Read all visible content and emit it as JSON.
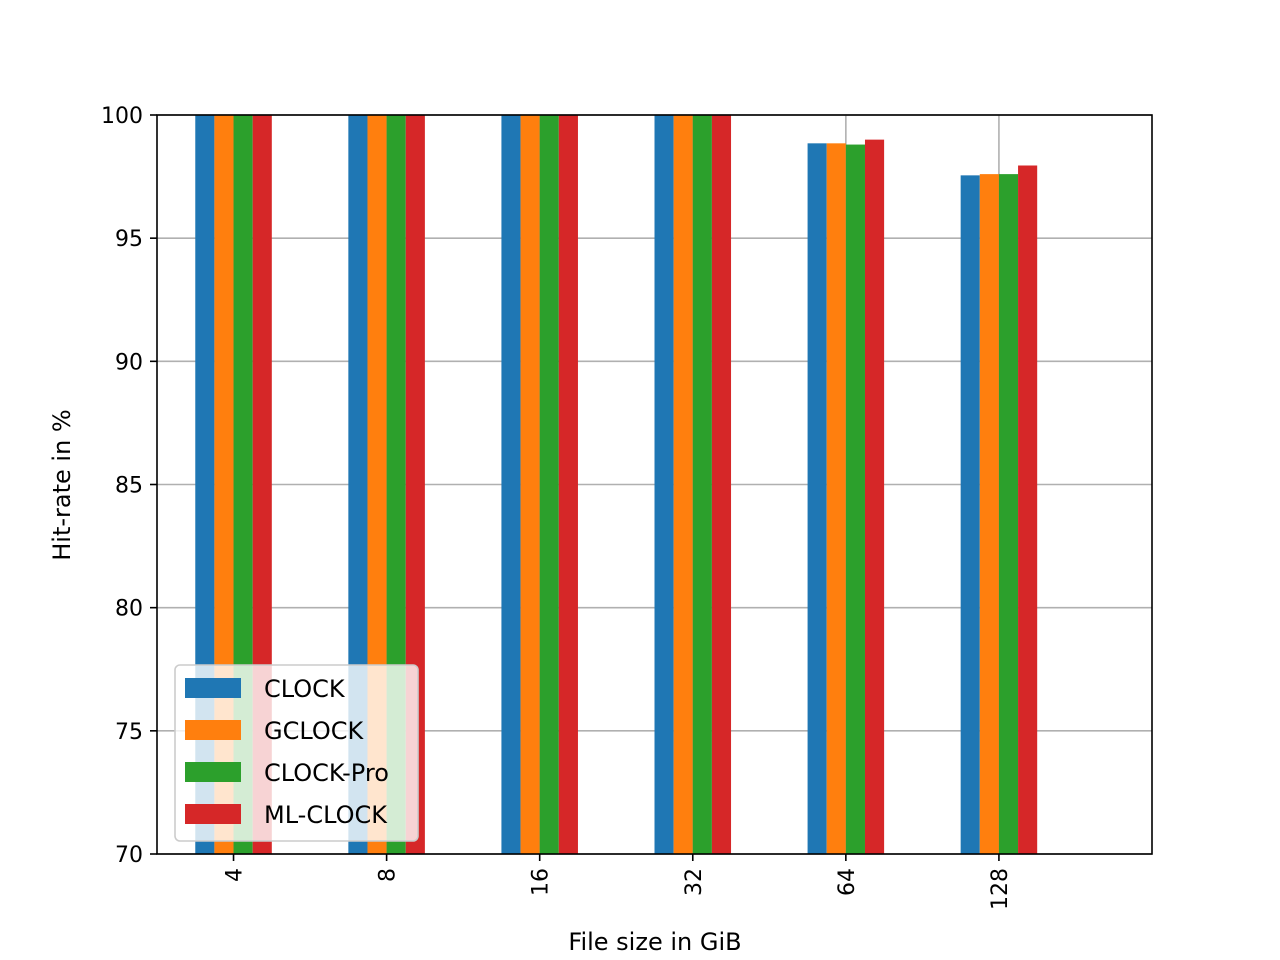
{
  "chart_data": {
    "type": "bar",
    "categories": [
      "4",
      "8",
      "16",
      "32",
      "64",
      "128"
    ],
    "series": [
      {
        "name": "CLOCK",
        "color": "#1f77b4",
        "values": [
          100,
          100,
          100,
          100,
          98.85,
          97.55
        ]
      },
      {
        "name": "GCLOCK",
        "color": "#ff7f0e",
        "values": [
          100,
          100,
          100,
          100,
          98.85,
          97.6
        ]
      },
      {
        "name": "CLOCK-Pro",
        "color": "#2ca02c",
        "values": [
          100,
          100,
          100,
          100,
          98.8,
          97.6
        ]
      },
      {
        "name": "ML-CLOCK",
        "color": "#d62728",
        "values": [
          100,
          100,
          100,
          100,
          99.0,
          97.95
        ]
      }
    ],
    "title": "",
    "xlabel": "File size in GiB",
    "ylabel": "Hit-rate in %",
    "ylim": [
      70,
      100
    ],
    "yticks": [
      "70",
      "75",
      "80",
      "85",
      "90",
      "95",
      "100"
    ],
    "grid": true,
    "legend_position": "lower-left"
  }
}
